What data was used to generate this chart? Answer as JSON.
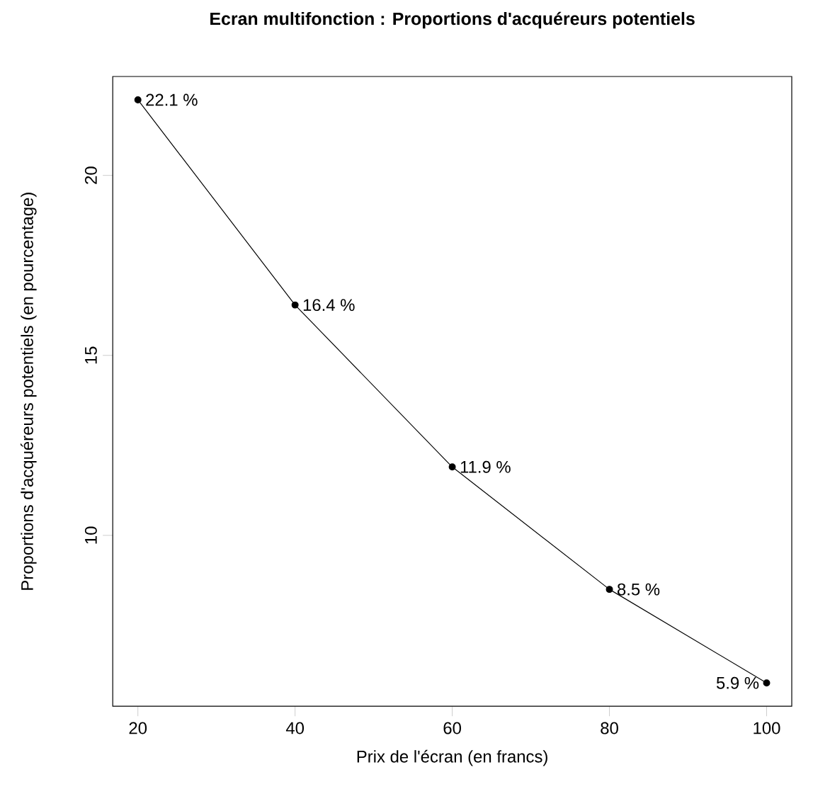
{
  "chart_data": {
    "type": "line",
    "title": "Ecran multifonction : Proportions d'acquéreurs potentiels",
    "xlabel": "Prix de l'écran (en francs)",
    "ylabel": "Proportions d'acquéreurs potentiels (en pourcentage)",
    "x": [
      20,
      40,
      60,
      80,
      100
    ],
    "values": [
      22.1,
      16.4,
      11.9,
      8.5,
      5.9
    ],
    "value_labels": [
      "22.1 %",
      "16.4 %",
      "11.9 %",
      "8.5 %",
      "5.9 %"
    ],
    "color": "#000000",
    "marker": "circle",
    "line_style": "solid",
    "xlim": [
      16.8,
      103.2
    ],
    "ylim": [
      5.252,
      22.748
    ],
    "xticks": [
      20,
      40,
      60,
      80,
      100
    ],
    "yticks": [
      10,
      15,
      20
    ]
  }
}
